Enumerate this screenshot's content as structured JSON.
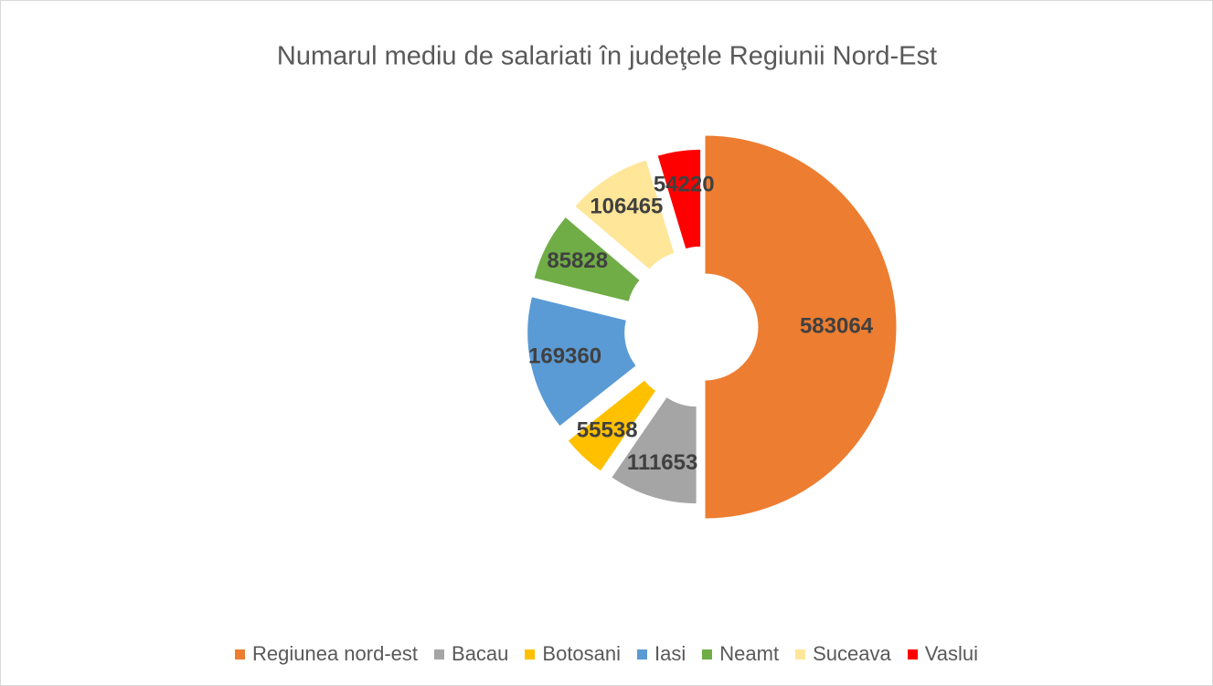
{
  "chart_data": {
    "type": "doughnut",
    "title": "Numarul mediu de salariati în judeţele Regiunii Nord-Est",
    "categories": [
      "Regiunea nord-est",
      "Bacau",
      "Botosani",
      "Iasi",
      "Neamt",
      "Suceava",
      "Vaslui"
    ],
    "values": [
      583064,
      111653,
      55538,
      169360,
      85828,
      106465,
      54220
    ],
    "colors": [
      "#ed7d31",
      "#a5a5a5",
      "#ffc000",
      "#5b9bd5",
      "#70ad47",
      "#ffe699",
      "#ff0000"
    ],
    "legend": "bottom"
  }
}
